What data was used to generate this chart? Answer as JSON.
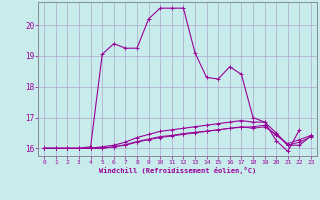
{
  "xlabel": "Windchill (Refroidissement éolien,°C)",
  "bg_color": "#c8ecec",
  "line_color": "#990099",
  "grid_color": "#aaaacc",
  "xlim": [
    -0.5,
    23.5
  ],
  "ylim": [
    15.75,
    20.75
  ],
  "xticks": [
    0,
    1,
    2,
    3,
    4,
    5,
    6,
    7,
    8,
    9,
    10,
    11,
    12,
    13,
    14,
    15,
    16,
    17,
    18,
    19,
    20,
    21,
    22,
    23
  ],
  "yticks": [
    16,
    17,
    18,
    19,
    20
  ],
  "line1_x": [
    0,
    1,
    2,
    3,
    4,
    5,
    6,
    7,
    8,
    9,
    10,
    11,
    12,
    13,
    14,
    15,
    16,
    17,
    18,
    19,
    20,
    21,
    22
  ],
  "line1_y": [
    16.0,
    16.0,
    16.0,
    16.0,
    16.05,
    19.05,
    19.4,
    19.25,
    19.25,
    20.2,
    20.55,
    20.55,
    20.55,
    19.1,
    18.3,
    18.25,
    18.65,
    18.4,
    17.0,
    16.85,
    16.25,
    15.9,
    16.6
  ],
  "line2_x": [
    0,
    1,
    2,
    3,
    4,
    5,
    6,
    7,
    8,
    9,
    10,
    11,
    12,
    13,
    14,
    15,
    16,
    17,
    18,
    19,
    20,
    21,
    22,
    23
  ],
  "line2_y": [
    16.0,
    16.0,
    16.0,
    16.0,
    16.0,
    16.05,
    16.1,
    16.2,
    16.35,
    16.45,
    16.55,
    16.6,
    16.65,
    16.7,
    16.75,
    16.8,
    16.85,
    16.9,
    16.85,
    16.85,
    16.5,
    16.1,
    16.1,
    16.4
  ],
  "line3_x": [
    0,
    1,
    2,
    3,
    4,
    5,
    6,
    7,
    8,
    9,
    10,
    11,
    12,
    13,
    14,
    15,
    16,
    17,
    18,
    19,
    20,
    21,
    22,
    23
  ],
  "line3_y": [
    16.0,
    16.0,
    16.0,
    16.0,
    16.0,
    16.0,
    16.05,
    16.1,
    16.2,
    16.28,
    16.35,
    16.4,
    16.45,
    16.5,
    16.55,
    16.6,
    16.65,
    16.7,
    16.65,
    16.7,
    16.45,
    16.1,
    16.2,
    16.38
  ],
  "line4_x": [
    0,
    1,
    2,
    3,
    4,
    5,
    6,
    7,
    8,
    9,
    10,
    11,
    12,
    13,
    14,
    15,
    16,
    17,
    18,
    19,
    20,
    21,
    22,
    23
  ],
  "line4_y": [
    16.0,
    16.0,
    16.0,
    16.0,
    16.0,
    16.0,
    16.05,
    16.12,
    16.22,
    16.3,
    16.38,
    16.42,
    16.48,
    16.52,
    16.56,
    16.6,
    16.65,
    16.68,
    16.7,
    16.75,
    16.42,
    16.15,
    16.28,
    16.42
  ]
}
